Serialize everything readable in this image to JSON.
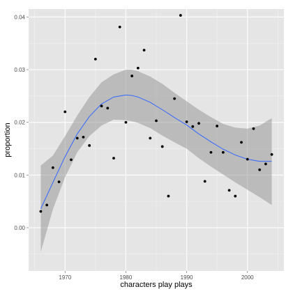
{
  "chart_data": {
    "type": "scatter",
    "title": "",
    "xlabel": "characters play plays",
    "ylabel": "proportion",
    "xlim": [
      1964,
      2006
    ],
    "ylim": [
      -0.0082,
      0.0415
    ],
    "x_ticks": [
      1970,
      1980,
      1990,
      2000
    ],
    "x_tick_labels": [
      "1970",
      "1980",
      "1990",
      "2000"
    ],
    "y_ticks": [
      0.0,
      0.01,
      0.02,
      0.03,
      0.04
    ],
    "y_tick_labels": [
      "0.00",
      "0.01",
      "0.02",
      "0.03",
      "0.04"
    ],
    "grid": true,
    "legend": "none",
    "colors": {
      "panel": "#e5e5e5",
      "grid_major": "#ffffff",
      "grid_minor": "#f2f2f2",
      "points": "#000000",
      "smooth_line": "#3366ff",
      "confidence_band": "#999999"
    },
    "points": [
      {
        "x": 1966,
        "y": 0.0031
      },
      {
        "x": 1967,
        "y": 0.0043
      },
      {
        "x": 1968,
        "y": 0.0114
      },
      {
        "x": 1969,
        "y": 0.0087
      },
      {
        "x": 1970,
        "y": 0.022
      },
      {
        "x": 1971,
        "y": 0.0129
      },
      {
        "x": 1972,
        "y": 0.017
      },
      {
        "x": 1973,
        "y": 0.0172
      },
      {
        "x": 1974,
        "y": 0.0156
      },
      {
        "x": 1975,
        "y": 0.032
      },
      {
        "x": 1976,
        "y": 0.0231
      },
      {
        "x": 1977,
        "y": 0.0227
      },
      {
        "x": 1978,
        "y": 0.0132
      },
      {
        "x": 1979,
        "y": 0.0381
      },
      {
        "x": 1980,
        "y": 0.02
      },
      {
        "x": 1981,
        "y": 0.0288
      },
      {
        "x": 1982,
        "y": 0.0303
      },
      {
        "x": 1983,
        "y": 0.0337
      },
      {
        "x": 1984,
        "y": 0.017
      },
      {
        "x": 1985,
        "y": 0.0203
      },
      {
        "x": 1986,
        "y": 0.0154
      },
      {
        "x": 1987,
        "y": 0.006
      },
      {
        "x": 1988,
        "y": 0.0245
      },
      {
        "x": 1989,
        "y": 0.0403
      },
      {
        "x": 1990,
        "y": 0.0201
      },
      {
        "x": 1991,
        "y": 0.0192
      },
      {
        "x": 1992,
        "y": 0.0198
      },
      {
        "x": 1993,
        "y": 0.0088
      },
      {
        "x": 1994,
        "y": 0.0143
      },
      {
        "x": 1995,
        "y": 0.0193
      },
      {
        "x": 1996,
        "y": 0.0143
      },
      {
        "x": 1997,
        "y": 0.0071
      },
      {
        "x": 1998,
        "y": 0.006
      },
      {
        "x": 1999,
        "y": 0.0162
      },
      {
        "x": 2000,
        "y": 0.013
      },
      {
        "x": 2001,
        "y": 0.0188
      },
      {
        "x": 2002,
        "y": 0.011
      },
      {
        "x": 2003,
        "y": 0.0121
      },
      {
        "x": 2004,
        "y": 0.0139
      }
    ],
    "smooth": {
      "x": [
        1966,
        1968,
        1970,
        1972,
        1974,
        1976,
        1978,
        1980,
        1981,
        1982,
        1984,
        1986,
        1988,
        1990,
        1992,
        1994,
        1996,
        1998,
        2000,
        2002,
        2004
      ],
      "fit": [
        0.0036,
        0.0086,
        0.0135,
        0.0178,
        0.0211,
        0.0235,
        0.0248,
        0.0252,
        0.0251,
        0.0248,
        0.0238,
        0.0224,
        0.0209,
        0.0195,
        0.0178,
        0.0163,
        0.0149,
        0.0138,
        0.013,
        0.0126,
        0.0126
      ],
      "lower": [
        -0.0046,
        0.0035,
        0.0096,
        0.0143,
        0.0174,
        0.0194,
        0.0205,
        0.0204,
        0.0202,
        0.0199,
        0.0189,
        0.0175,
        0.0162,
        0.015,
        0.0132,
        0.0116,
        0.0101,
        0.0086,
        0.0072,
        0.0058,
        0.0043
      ],
      "upper": [
        0.0118,
        0.0137,
        0.0174,
        0.0213,
        0.0248,
        0.0276,
        0.0291,
        0.03,
        0.03,
        0.0297,
        0.0287,
        0.0273,
        0.0256,
        0.024,
        0.0224,
        0.021,
        0.0197,
        0.019,
        0.0188,
        0.0194,
        0.0208
      ]
    }
  }
}
